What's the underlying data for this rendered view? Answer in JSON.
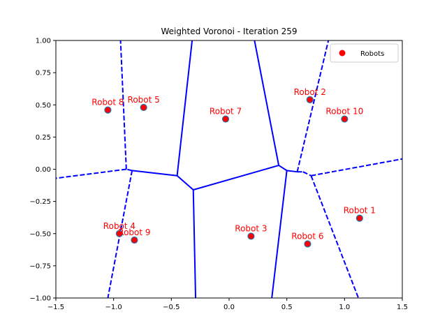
{
  "chart_data": {
    "type": "scatter",
    "title": "Weighted Voronoi - Iteration 259",
    "xlim": [
      -1.5,
      1.5
    ],
    "ylim": [
      -1.0,
      1.0
    ],
    "x_ticks": [
      "-1.5",
      "-1.0",
      "-0.5",
      "0.0",
      "0.5",
      "1.0",
      "1.5"
    ],
    "y_ticks": [
      "-1.00",
      "-0.75",
      "-0.50",
      "-0.25",
      "0.00",
      "0.25",
      "0.50",
      "0.75",
      "1.00"
    ],
    "legend": {
      "position": "top-right",
      "entries": [
        "Robots"
      ]
    },
    "grid": false,
    "colors": {
      "robot_marker": "#ff0000",
      "marker_edge": "#1f77b4",
      "edges": "#0000ff",
      "labels": "#ff0000"
    },
    "robots": [
      {
        "name": "Robot 1",
        "label": "Robot 1",
        "x": 1.13,
        "y": -0.38
      },
      {
        "name": "Robot 2",
        "label": "Robot 2",
        "x": 0.7,
        "y": 0.54
      },
      {
        "name": "Robot 3",
        "label": "Robot 3",
        "x": 0.19,
        "y": -0.52
      },
      {
        "name": "Robot 4",
        "label": "Robot 4",
        "x": -0.95,
        "y": -0.5
      },
      {
        "name": "Robot 5",
        "label": "Robot 5",
        "x": -0.74,
        "y": 0.48
      },
      {
        "name": "Robot 6",
        "label": "Robot 6",
        "x": 0.68,
        "y": -0.58
      },
      {
        "name": "Robot 7",
        "label": "Robot 7",
        "x": -0.03,
        "y": 0.39
      },
      {
        "name": "Robot 8",
        "label": "Robot 8",
        "x": -1.05,
        "y": 0.46
      },
      {
        "name": "Robot 9",
        "label": "Robot 9",
        "x": -0.82,
        "y": -0.55
      },
      {
        "name": "Robot 10",
        "label": "Robot 10",
        "x": 1.0,
        "y": 0.39
      }
    ],
    "voronoi_edges_solid": [
      [
        [
          -0.31,
          -0.16
        ],
        [
          -0.45,
          -0.05
        ]
      ],
      [
        [
          -0.31,
          -0.16
        ],
        [
          0.43,
          0.03
        ]
      ],
      [
        [
          -0.31,
          -0.16
        ],
        [
          -0.29,
          -1.0
        ]
      ],
      [
        [
          -0.45,
          -0.05
        ],
        [
          -0.84,
          -0.01
        ]
      ],
      [
        [
          -0.45,
          -0.05
        ],
        [
          -0.32,
          1.0
        ]
      ],
      [
        [
          0.43,
          0.03
        ],
        [
          0.22,
          1.0
        ]
      ],
      [
        [
          0.43,
          0.03
        ],
        [
          0.5,
          -0.01
        ]
      ],
      [
        [
          0.5,
          -0.01
        ],
        [
          0.59,
          -0.02
        ]
      ],
      [
        [
          0.5,
          -0.01
        ],
        [
          0.37,
          -1.0
        ]
      ]
    ],
    "voronoi_edges_dashed": [
      [
        [
          -0.84,
          -0.01
        ],
        [
          -0.89,
          0.0
        ]
      ],
      [
        [
          -0.89,
          0.0
        ],
        [
          -1.5,
          -0.07
        ]
      ],
      [
        [
          -0.89,
          0.0
        ],
        [
          -0.94,
          1.0
        ]
      ],
      [
        [
          -0.84,
          -0.01
        ],
        [
          -1.05,
          -1.0
        ]
      ],
      [
        [
          0.59,
          -0.02
        ],
        [
          0.64,
          -0.02
        ]
      ],
      [
        [
          0.59,
          -0.02
        ],
        [
          0.86,
          1.0
        ]
      ],
      [
        [
          0.64,
          -0.02
        ],
        [
          0.71,
          -0.05
        ]
      ],
      [
        [
          0.71,
          -0.05
        ],
        [
          1.5,
          0.08
        ]
      ],
      [
        [
          0.71,
          -0.05
        ],
        [
          1.12,
          -1.0
        ]
      ]
    ]
  }
}
